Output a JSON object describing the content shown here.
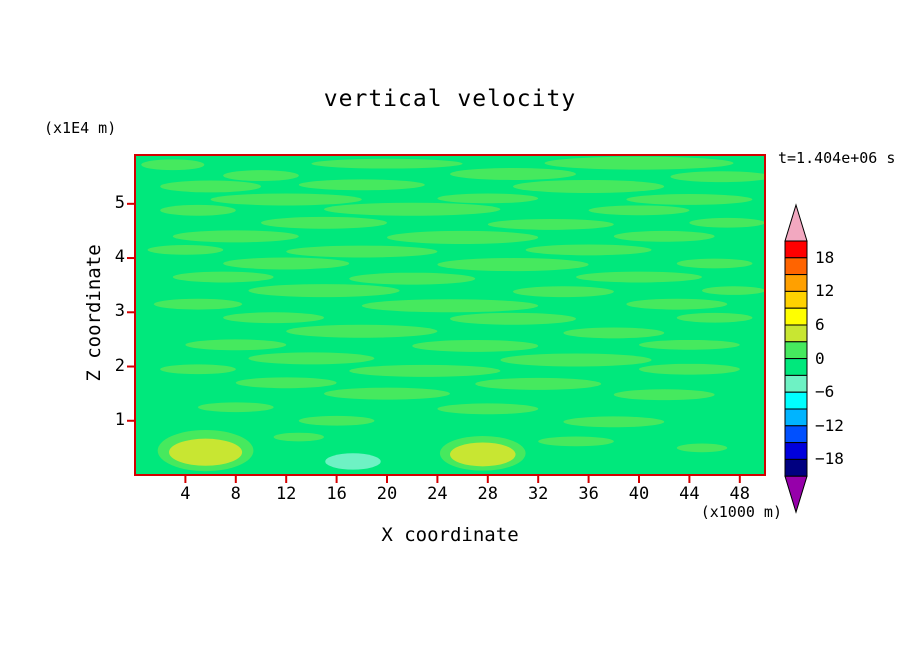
{
  "chart_data": {
    "type": "contour",
    "title": "vertical velocity",
    "time_label": "t=1.404e+06 s",
    "xlabel": "X coordinate",
    "ylabel": "Z coordinate",
    "x_unit_label": "(x1000 m)",
    "y_unit_label": "(x1E4 m)",
    "x_range": [
      0,
      50
    ],
    "z_range": [
      0,
      5.9
    ],
    "x_ticks": [
      4,
      8,
      12,
      16,
      20,
      24,
      28,
      32,
      36,
      40,
      44,
      48
    ],
    "z_ticks": [
      1,
      2,
      3,
      4,
      5
    ],
    "frame_color": "#d40000",
    "contour_interval": 3,
    "band_colors": {
      "base": "#00e87c",
      "0to3": "#46e95e",
      "3to6": "#c8e632",
      "-3to-6": "#6ef2c4"
    },
    "colorbar": {
      "tick_labels": [
        "18",
        "12",
        "6",
        "0",
        "−18",
        "−12",
        "−6"
      ],
      "labels_top_to_bottom": [
        "18",
        "12",
        "6",
        "0",
        "−6",
        "−12",
        "−18"
      ],
      "band_colors_top_to_bottom": [
        "#ff0000",
        "#ff6400",
        "#ffa000",
        "#ffd200",
        "#ffff00",
        "#c8e632",
        "#46e95e",
        "#00e87c",
        "#6ef2c4",
        "#00ffff",
        "#00b4ff",
        "#0050ff",
        "#0000dc",
        "#000080"
      ],
      "over_color": "#f2a8c0",
      "under_color": "#9600aa"
    },
    "features": [
      [
        "0to3",
        3,
        5.72,
        2.5,
        0.1
      ],
      [
        "0to3",
        20,
        5.74,
        6,
        0.09
      ],
      [
        "0to3",
        40,
        5.75,
        7.5,
        0.12
      ],
      [
        "0to3",
        10,
        5.52,
        3,
        0.1
      ],
      [
        "0to3",
        30,
        5.55,
        5,
        0.11
      ],
      [
        "0to3",
        46.5,
        5.5,
        4,
        0.1
      ],
      [
        "0to3",
        6,
        5.32,
        4,
        0.11
      ],
      [
        "0to3",
        18,
        5.35,
        5,
        0.1
      ],
      [
        "0to3",
        36,
        5.32,
        6,
        0.12
      ],
      [
        "0to3",
        12,
        5.08,
        6,
        0.11
      ],
      [
        "0to3",
        28,
        5.1,
        4,
        0.09
      ],
      [
        "0to3",
        44,
        5.08,
        5,
        0.1
      ],
      [
        "0to3",
        5,
        4.88,
        3,
        0.1
      ],
      [
        "0to3",
        22,
        4.9,
        7,
        0.12
      ],
      [
        "0to3",
        40,
        4.88,
        4,
        0.09
      ],
      [
        "0to3",
        15,
        4.65,
        5,
        0.11
      ],
      [
        "0to3",
        33,
        4.62,
        5,
        0.1
      ],
      [
        "0to3",
        47,
        4.65,
        3,
        0.09
      ],
      [
        "0to3",
        8,
        4.4,
        5,
        0.11
      ],
      [
        "0to3",
        26,
        4.38,
        6,
        0.12
      ],
      [
        "0to3",
        42,
        4.4,
        4,
        0.1
      ],
      [
        "0to3",
        4,
        4.15,
        3,
        0.09
      ],
      [
        "0to3",
        18,
        4.12,
        6,
        0.11
      ],
      [
        "0to3",
        36,
        4.15,
        5,
        0.1
      ],
      [
        "0to3",
        12,
        3.9,
        5,
        0.11
      ],
      [
        "0to3",
        30,
        3.88,
        6,
        0.12
      ],
      [
        "0to3",
        46,
        3.9,
        3,
        0.09
      ],
      [
        "0to3",
        7,
        3.65,
        4,
        0.1
      ],
      [
        "0to3",
        22,
        3.62,
        5,
        0.11
      ],
      [
        "0to3",
        40,
        3.65,
        5,
        0.1
      ],
      [
        "0to3",
        15,
        3.4,
        6,
        0.12
      ],
      [
        "0to3",
        34,
        3.38,
        4,
        0.1
      ],
      [
        "0to3",
        47.5,
        3.4,
        2.5,
        0.08
      ],
      [
        "0to3",
        5,
        3.15,
        3.5,
        0.1
      ],
      [
        "0to3",
        25,
        3.12,
        7,
        0.12
      ],
      [
        "0to3",
        43,
        3.15,
        4,
        0.1
      ],
      [
        "0to3",
        11,
        2.9,
        4,
        0.1
      ],
      [
        "0to3",
        30,
        2.88,
        5,
        0.11
      ],
      [
        "0to3",
        46,
        2.9,
        3,
        0.09
      ],
      [
        "0to3",
        18,
        2.65,
        6,
        0.12
      ],
      [
        "0to3",
        38,
        2.62,
        4,
        0.1
      ],
      [
        "0to3",
        8,
        2.4,
        4,
        0.1
      ],
      [
        "0to3",
        27,
        2.38,
        5,
        0.11
      ],
      [
        "0to3",
        44,
        2.4,
        4,
        0.09
      ],
      [
        "0to3",
        14,
        2.15,
        5,
        0.11
      ],
      [
        "0to3",
        35,
        2.12,
        6,
        0.12
      ],
      [
        "0to3",
        5,
        1.95,
        3,
        0.09
      ],
      [
        "0to3",
        23,
        1.92,
        6,
        0.11
      ],
      [
        "0to3",
        44,
        1.95,
        4,
        0.1
      ],
      [
        "0to3",
        12,
        1.7,
        4,
        0.1
      ],
      [
        "0to3",
        32,
        1.68,
        5,
        0.11
      ],
      [
        "0to3",
        20,
        1.5,
        5,
        0.11
      ],
      [
        "0to3",
        42,
        1.48,
        4,
        0.1
      ],
      [
        "0to3",
        8,
        1.25,
        3,
        0.09
      ],
      [
        "0to3",
        28,
        1.22,
        4,
        0.1
      ],
      [
        "0to3",
        16,
        1.0,
        3,
        0.09
      ],
      [
        "0to3",
        38,
        0.98,
        4,
        0.1
      ],
      [
        "0to3",
        13,
        0.7,
        2,
        0.08
      ],
      [
        "0to3",
        35,
        0.62,
        3,
        0.09
      ],
      [
        "0to3",
        45,
        0.5,
        2,
        0.08
      ],
      [
        "0to3",
        5.6,
        0.45,
        3.8,
        0.38
      ],
      [
        "0to3",
        27.6,
        0.4,
        3.4,
        0.32
      ],
      [
        "3to6",
        5.6,
        0.42,
        2.9,
        0.25
      ],
      [
        "3to6",
        27.6,
        0.38,
        2.6,
        0.22
      ],
      [
        "-3to-6",
        17.3,
        0.25,
        2.2,
        0.15
      ]
    ]
  }
}
